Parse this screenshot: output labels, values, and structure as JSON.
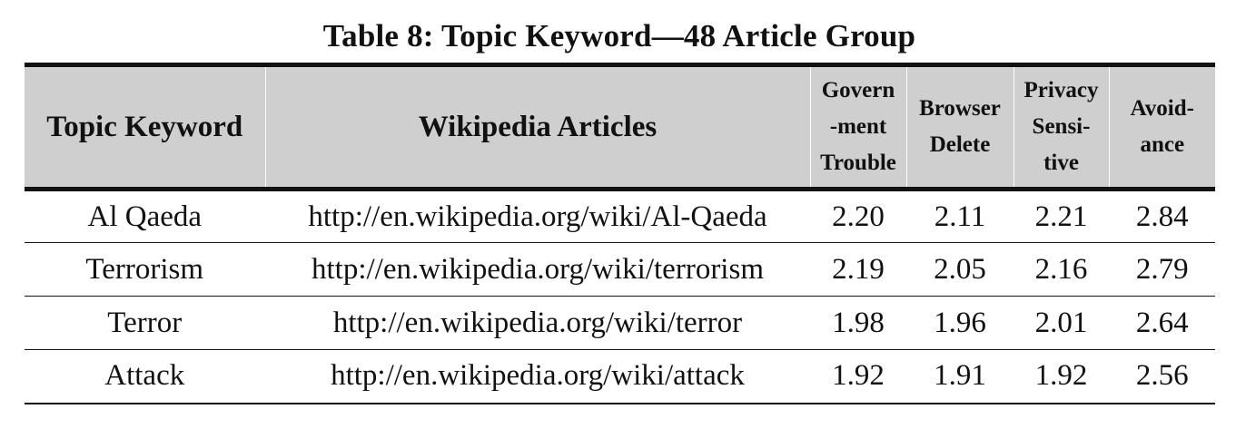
{
  "caption": "Table 8: Topic Keyword—48 Article Group",
  "table": {
    "headers": {
      "topic": "Topic Keyword",
      "articles": "Wikipedia Articles",
      "government": [
        "Govern",
        "-ment",
        "Trouble"
      ],
      "browser": [
        "Browser",
        "Delete"
      ],
      "privacy": [
        "Privacy",
        "Sensi-",
        "tive"
      ],
      "avoidance": [
        "Avoid-",
        "ance"
      ]
    },
    "rows": [
      {
        "topic": "Al Qaeda",
        "url": "http://en.wikipedia.org/wiki/Al-Qaeda",
        "government": "2.20",
        "browser": "2.11",
        "privacy": "2.21",
        "avoidance": "2.84"
      },
      {
        "topic": "Terrorism",
        "url": "http://en.wikipedia.org/wiki/terrorism",
        "government": "2.19",
        "browser": "2.05",
        "privacy": "2.16",
        "avoidance": "2.79"
      },
      {
        "topic": "Terror",
        "url": "http://en.wikipedia.org/wiki/terror",
        "government": "1.98",
        "browser": "1.96",
        "privacy": "2.01",
        "avoidance": "2.64"
      },
      {
        "topic": "Attack",
        "url": "http://en.wikipedia.org/wiki/attack",
        "government": "1.92",
        "browser": "1.91",
        "privacy": "1.92",
        "avoidance": "2.56"
      }
    ]
  },
  "colors": {
    "header_background": "#cfcfcf",
    "rule": "#111111",
    "text": "#111111",
    "background": "#ffffff"
  }
}
